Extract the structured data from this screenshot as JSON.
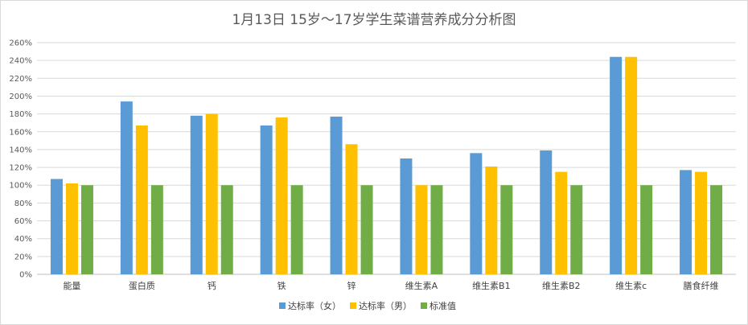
{
  "chart_data": {
    "type": "bar",
    "title": "1月13日 15岁～17岁学生菜谱营养成分分析图",
    "categories": [
      "能量",
      "蛋白质",
      "钙",
      "铁",
      "锌",
      "维生素A",
      "维生素B1",
      "维生素B2",
      "维生素c",
      "膳食纤维"
    ],
    "series": [
      {
        "name": "达标率（女）",
        "color": "#5B9BD5",
        "values": [
          107,
          194,
          178,
          167,
          177,
          130,
          136,
          139,
          244,
          117
        ]
      },
      {
        "name": "达标率（男）",
        "color": "#FFC000",
        "values": [
          102,
          167,
          180,
          176,
          146,
          100,
          121,
          115,
          244,
          115
        ]
      },
      {
        "name": "标准值",
        "color": "#70AD47",
        "values": [
          100,
          100,
          100,
          100,
          100,
          100,
          100,
          100,
          100,
          100
        ]
      }
    ],
    "ylim": [
      0,
      260
    ],
    "yticks": [
      "0%",
      "20%",
      "40%",
      "60%",
      "80%",
      "100%",
      "120%",
      "140%",
      "160%",
      "180%",
      "200%",
      "220%",
      "240%",
      "260%"
    ],
    "grid": true,
    "legend_position": "bottom"
  }
}
